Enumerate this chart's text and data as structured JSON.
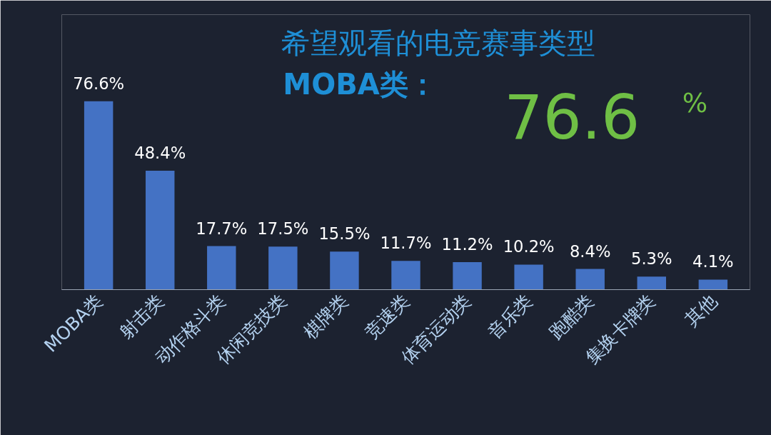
{
  "chart_data": {
    "type": "bar",
    "title": "希望观看的电竞赛事类型",
    "subtitle": "MOBA类：",
    "annotations": [
      "76.6",
      "%"
    ],
    "categories": [
      "MOBA类",
      "射击类",
      "动作格斗类",
      "休闲竞技类",
      "棋牌类",
      "竞速类",
      "体育运动类",
      "音乐类",
      "跑酷类",
      "集换卡牌类",
      "其他"
    ],
    "values": [
      76.6,
      48.4,
      17.7,
      17.5,
      15.5,
      11.7,
      11.2,
      10.2,
      8.4,
      5.3,
      4.1
    ],
    "value_labels": [
      "76.6%",
      "48.4%",
      "17.7%",
      "17.5%",
      "15.5%",
      "11.7%",
      "11.2%",
      "10.2%",
      "8.4%",
      "5.3%",
      "4.1%"
    ],
    "color": "#4472c4"
  }
}
